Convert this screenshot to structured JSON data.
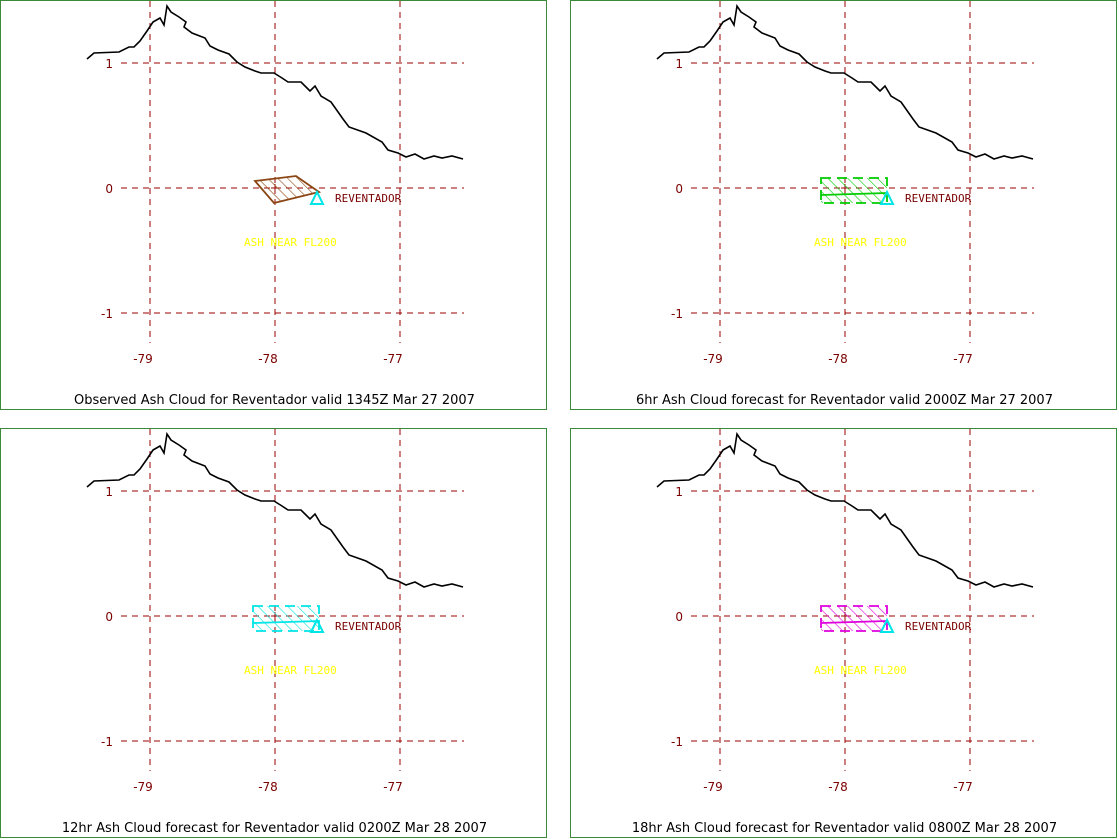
{
  "colors": {
    "grid": "#990000",
    "tick_text": "#7a0000",
    "coast": "#000000",
    "volcano": "#00e5e5",
    "ash_label": "#ffff00",
    "border": "#3a8a3a"
  },
  "map": {
    "lon_ticks": [
      "-79",
      "-78",
      "-77"
    ],
    "lat_ticks": [
      "1",
      "0",
      "-1"
    ],
    "volcano_name": "REVENTADOR",
    "ash_text": "ASH NEAR FL200",
    "volcano_icon": "triangle-icon"
  },
  "panels": [
    {
      "title": "Observed Ash Cloud for Reventador valid 1345Z Mar 27 2007",
      "cloud_color": "#8b4513",
      "cloud_shape": "parallelogram"
    },
    {
      "title": "6hr Ash Cloud forecast for Reventador valid 2000Z Mar 27 2007",
      "cloud_color": "#00cc00",
      "cloud_shape": "band"
    },
    {
      "title": "12hr Ash Cloud forecast for Reventador valid 0200Z Mar 28 2007",
      "cloud_color": "#00e5e5",
      "cloud_shape": "band"
    },
    {
      "title": "18hr Ash Cloud forecast for Reventador valid 0800Z Mar 28 2007",
      "cloud_color": "#dd00dd",
      "cloud_shape": "band"
    }
  ]
}
